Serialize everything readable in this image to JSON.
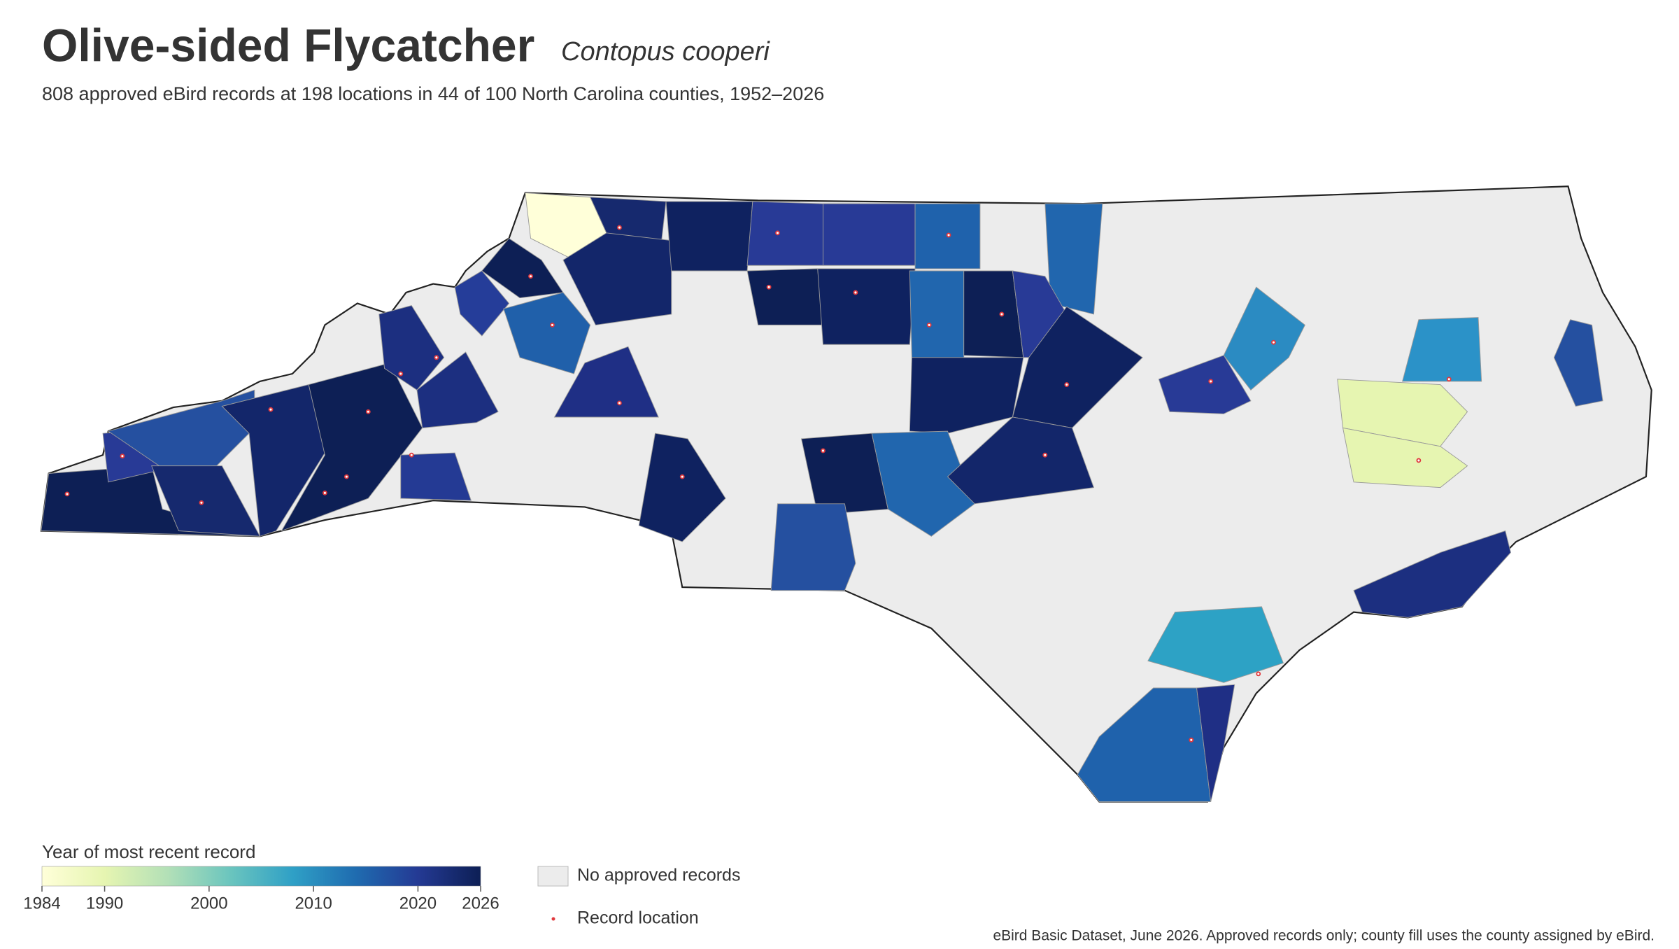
{
  "title": "Olive-sided Flycatcher",
  "scientific_name": "Contopus cooperi",
  "subtitle": "808 approved eBird records at 198 locations in 44 of 100 North Carolina counties, 1952–2026",
  "legend": {
    "title": "Year of most recent record",
    "range": [
      1984,
      2026
    ],
    "ticks": [
      1984,
      1990,
      2000,
      2010,
      2020,
      2026
    ],
    "colors": [
      "#ffffd9",
      "#e6f5b1",
      "#b3e0b7",
      "#6bc5be",
      "#2fa0c6",
      "#1f6cb0",
      "#243a94",
      "#0d1f55"
    ],
    "no_records": "No approved records",
    "record_location": "Record location"
  },
  "source": "eBird Basic Dataset, June 2026. Approved records only; county fill uses the county assigned by eBird."
}
